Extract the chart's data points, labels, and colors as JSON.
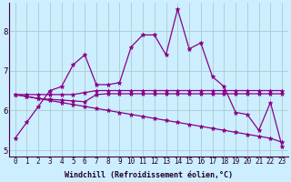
{
  "xlabel": "Windchill (Refroidissement éolien,°C)",
  "background_color": "#cceeff",
  "line_color": "#880088",
  "grid_color": "#aacccc",
  "xlim": [
    -0.5,
    23.5
  ],
  "ylim": [
    4.85,
    8.7
  ],
  "xticks": [
    0,
    1,
    2,
    3,
    4,
    5,
    6,
    7,
    8,
    9,
    10,
    11,
    12,
    13,
    14,
    15,
    16,
    17,
    18,
    19,
    20,
    21,
    22,
    23
  ],
  "yticks": [
    5,
    6,
    7,
    8
  ],
  "series": [
    [
      5.3,
      5.7,
      6.1,
      6.5,
      6.6,
      7.15,
      7.4,
      6.65,
      6.65,
      6.7,
      7.6,
      7.9,
      7.9,
      7.4,
      8.55,
      7.55,
      7.7,
      6.85,
      6.6,
      5.95,
      5.9,
      5.5,
      6.2,
      5.1
    ],
    [
      6.4,
      6.4,
      6.4,
      6.4,
      6.4,
      6.4,
      6.45,
      6.5,
      6.5,
      6.5,
      6.5,
      6.5,
      6.5,
      6.5,
      6.5,
      6.5,
      6.5,
      6.5,
      6.5,
      6.5,
      6.5,
      6.5,
      6.5,
      6.5
    ],
    [
      6.4,
      6.35,
      6.3,
      6.25,
      6.2,
      6.15,
      6.1,
      6.05,
      6.0,
      5.95,
      5.9,
      5.85,
      5.8,
      5.75,
      5.7,
      5.65,
      5.6,
      5.55,
      5.5,
      5.45,
      5.4,
      5.35,
      5.3,
      5.2
    ],
    [
      6.4,
      6.35,
      6.3,
      6.28,
      6.26,
      6.24,
      6.22,
      6.4,
      6.42,
      6.42,
      6.42,
      6.42,
      6.42,
      6.42,
      6.42,
      6.42,
      6.42,
      6.42,
      6.42,
      6.42,
      6.42,
      6.42,
      6.42,
      6.42
    ]
  ],
  "marker": "*",
  "markersize": 3.5,
  "linewidth": 0.9,
  "xlabel_fontsize": 6,
  "xlabel_color": "#220022",
  "tick_fontsize": 5.5,
  "tick_color": "#220022"
}
